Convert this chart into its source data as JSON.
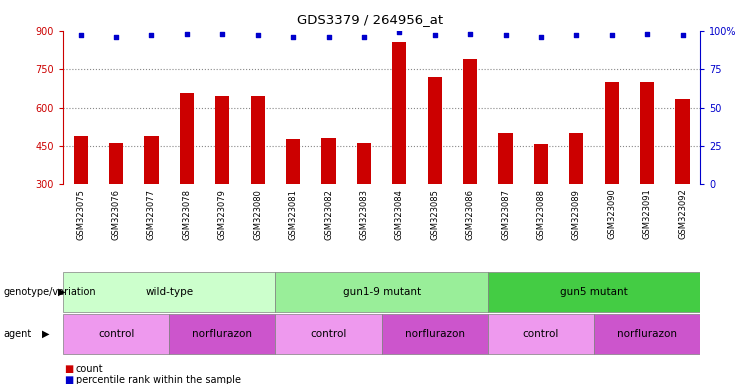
{
  "title": "GDS3379 / 264956_at",
  "samples": [
    "GSM323075",
    "GSM323076",
    "GSM323077",
    "GSM323078",
    "GSM323079",
    "GSM323080",
    "GSM323081",
    "GSM323082",
    "GSM323083",
    "GSM323084",
    "GSM323085",
    "GSM323086",
    "GSM323087",
    "GSM323088",
    "GSM323089",
    "GSM323090",
    "GSM323091",
    "GSM323092"
  ],
  "counts": [
    490,
    462,
    487,
    655,
    645,
    645,
    477,
    480,
    463,
    855,
    720,
    790,
    500,
    456,
    500,
    700,
    700,
    635
  ],
  "percentile_ranks": [
    97,
    96,
    97,
    98,
    98,
    97,
    96,
    96,
    96,
    99,
    97,
    98,
    97,
    96,
    97,
    97,
    98,
    97
  ],
  "ylim_left": [
    300,
    900
  ],
  "ylim_right": [
    0,
    100
  ],
  "yticks_left": [
    300,
    450,
    600,
    750,
    900
  ],
  "yticks_right": [
    0,
    25,
    50,
    75,
    100
  ],
  "bar_color": "#cc0000",
  "dot_color": "#0000cc",
  "genotype_groups": [
    {
      "label": "wild-type",
      "start": 0,
      "end": 5,
      "color": "#ccffcc"
    },
    {
      "label": "gun1-9 mutant",
      "start": 6,
      "end": 11,
      "color": "#99ee99"
    },
    {
      "label": "gun5 mutant",
      "start": 12,
      "end": 17,
      "color": "#44cc44"
    }
  ],
  "agent_groups": [
    {
      "label": "control",
      "start": 0,
      "end": 2,
      "color": "#ee99ee"
    },
    {
      "label": "norflurazon",
      "start": 3,
      "end": 5,
      "color": "#cc55cc"
    },
    {
      "label": "control",
      "start": 6,
      "end": 8,
      "color": "#ee99ee"
    },
    {
      "label": "norflurazon",
      "start": 9,
      "end": 11,
      "color": "#cc55cc"
    },
    {
      "label": "control",
      "start": 12,
      "end": 14,
      "color": "#ee99ee"
    },
    {
      "label": "norflurazon",
      "start": 15,
      "end": 17,
      "color": "#cc55cc"
    }
  ],
  "grid_color": "#888888",
  "bar_width": 0.4,
  "tick_bg_color": "#cccccc"
}
